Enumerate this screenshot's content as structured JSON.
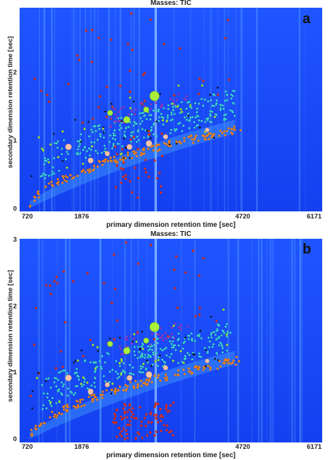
{
  "chart_data": [
    {
      "type": "scatter",
      "panel_label": "a",
      "title": "Masses: TIC",
      "xlabel": "primary dimension retention time [sec]",
      "ylabel": "secondary dimension retention time [sec]",
      "x_ticks": [
        "720",
        "1876",
        "4720",
        "6171"
      ],
      "x_tick_values": [
        720,
        1876,
        4720,
        6171
      ],
      "y_ticks": [
        "0",
        "1",
        "2"
      ],
      "y_tick_values": [
        0,
        1,
        2
      ],
      "xlim": [
        720,
        6171
      ],
      "ylim": [
        0,
        3
      ],
      "background": "TIC heatmap (blue)",
      "colors": {
        "background": "#1747ff",
        "cyan": "#3fe3dd",
        "orange": "#ff8a1e",
        "red": "#e0322a",
        "purple": "#a33bd6",
        "green": "#a8ee3a",
        "peach": "#f6c2a8",
        "black": "#111111"
      },
      "seed": 11,
      "red_cloud": {
        "x": [
          2400,
          3300
        ],
        "y": [
          0.2,
          1.2
        ],
        "n": 35
      }
    },
    {
      "type": "scatter",
      "panel_label": "b",
      "title": "Masses: TIC",
      "xlabel": "primary dimension retention time [sec]",
      "ylabel": "secondary dimension retention time [sec]",
      "x_ticks": [
        "720",
        "1876",
        "4720",
        "6171"
      ],
      "x_tick_values": [
        720,
        1876,
        4720,
        6171
      ],
      "y_ticks": [
        "0",
        "1",
        "2",
        "3"
      ],
      "y_tick_values": [
        0,
        1,
        2,
        3
      ],
      "xlim": [
        720,
        6171
      ],
      "ylim": [
        0,
        3
      ],
      "background": "TIC heatmap (blue)",
      "colors": {
        "background": "#1747ff",
        "cyan": "#3fe3dd",
        "orange": "#ff8a1e",
        "red": "#e0322a",
        "purple": "#a33bd6",
        "green": "#a8ee3a",
        "peach": "#f6c2a8",
        "black": "#111111"
      },
      "seed": 29,
      "red_cloud": {
        "x": [
          2400,
          3500
        ],
        "y": [
          0.05,
          0.6
        ],
        "n": 90
      }
    }
  ]
}
